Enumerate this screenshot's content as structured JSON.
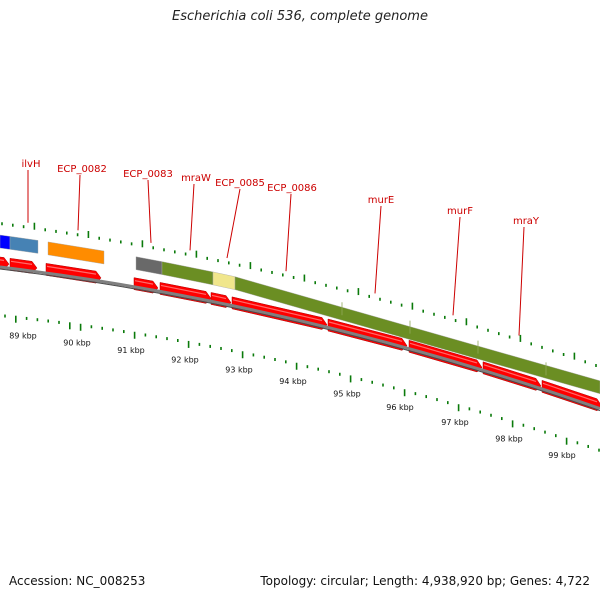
{
  "title": "Escherichia coli 536, complete genome",
  "accession": "Accession: NC_008253",
  "topology": "Topology: circular; Length: 4,938,920 bp; Genes: 4,722",
  "colors": {
    "cds": "#ff0000",
    "gene_label": "#cc0000",
    "tick": "#0a7a0a",
    "backbone": "#808080",
    "olive": "#6b8e23",
    "steelblue": "#4682b4",
    "blue": "#0000ff",
    "orange": "#ff8c00",
    "gray": "#696969",
    "khaki": "#f0e68c"
  },
  "kbp_labels": [
    "89 kbp",
    "90 kbp",
    "91 kbp",
    "92 kbp",
    "93 kbp",
    "94 kbp",
    "95 kbp",
    "96 kbp",
    "97 kbp",
    "98 kbp",
    "99 kbp"
  ],
  "gene_labels": [
    "ilvH",
    "ECP_0082",
    "ECP_0083",
    "mraW",
    "ECP_0085",
    "ECP_0086",
    "murE",
    "murF",
    "mraY"
  ]
}
